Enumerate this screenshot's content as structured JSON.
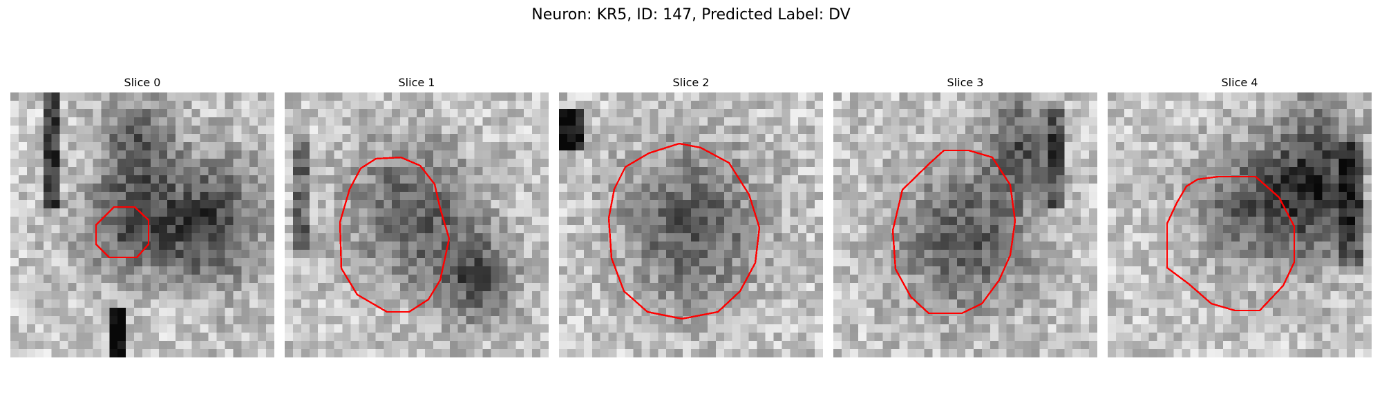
{
  "figure": {
    "title": "Neuron: KR5, ID: 147, Predicted Label: DV"
  },
  "panels": [
    {
      "title": "Slice 0",
      "contour_color": "#ff0000",
      "image_type": "grayscale microscopy patch"
    },
    {
      "title": "Slice 1",
      "contour_color": "#ff0000",
      "image_type": "grayscale microscopy patch"
    },
    {
      "title": "Slice 2",
      "contour_color": "#ff0000",
      "image_type": "grayscale microscopy patch"
    },
    {
      "title": "Slice 3",
      "contour_color": "#ff0000",
      "image_type": "grayscale microscopy patch"
    },
    {
      "title": "Slice 4",
      "contour_color": "#ff0000",
      "image_type": "grayscale microscopy patch"
    }
  ]
}
